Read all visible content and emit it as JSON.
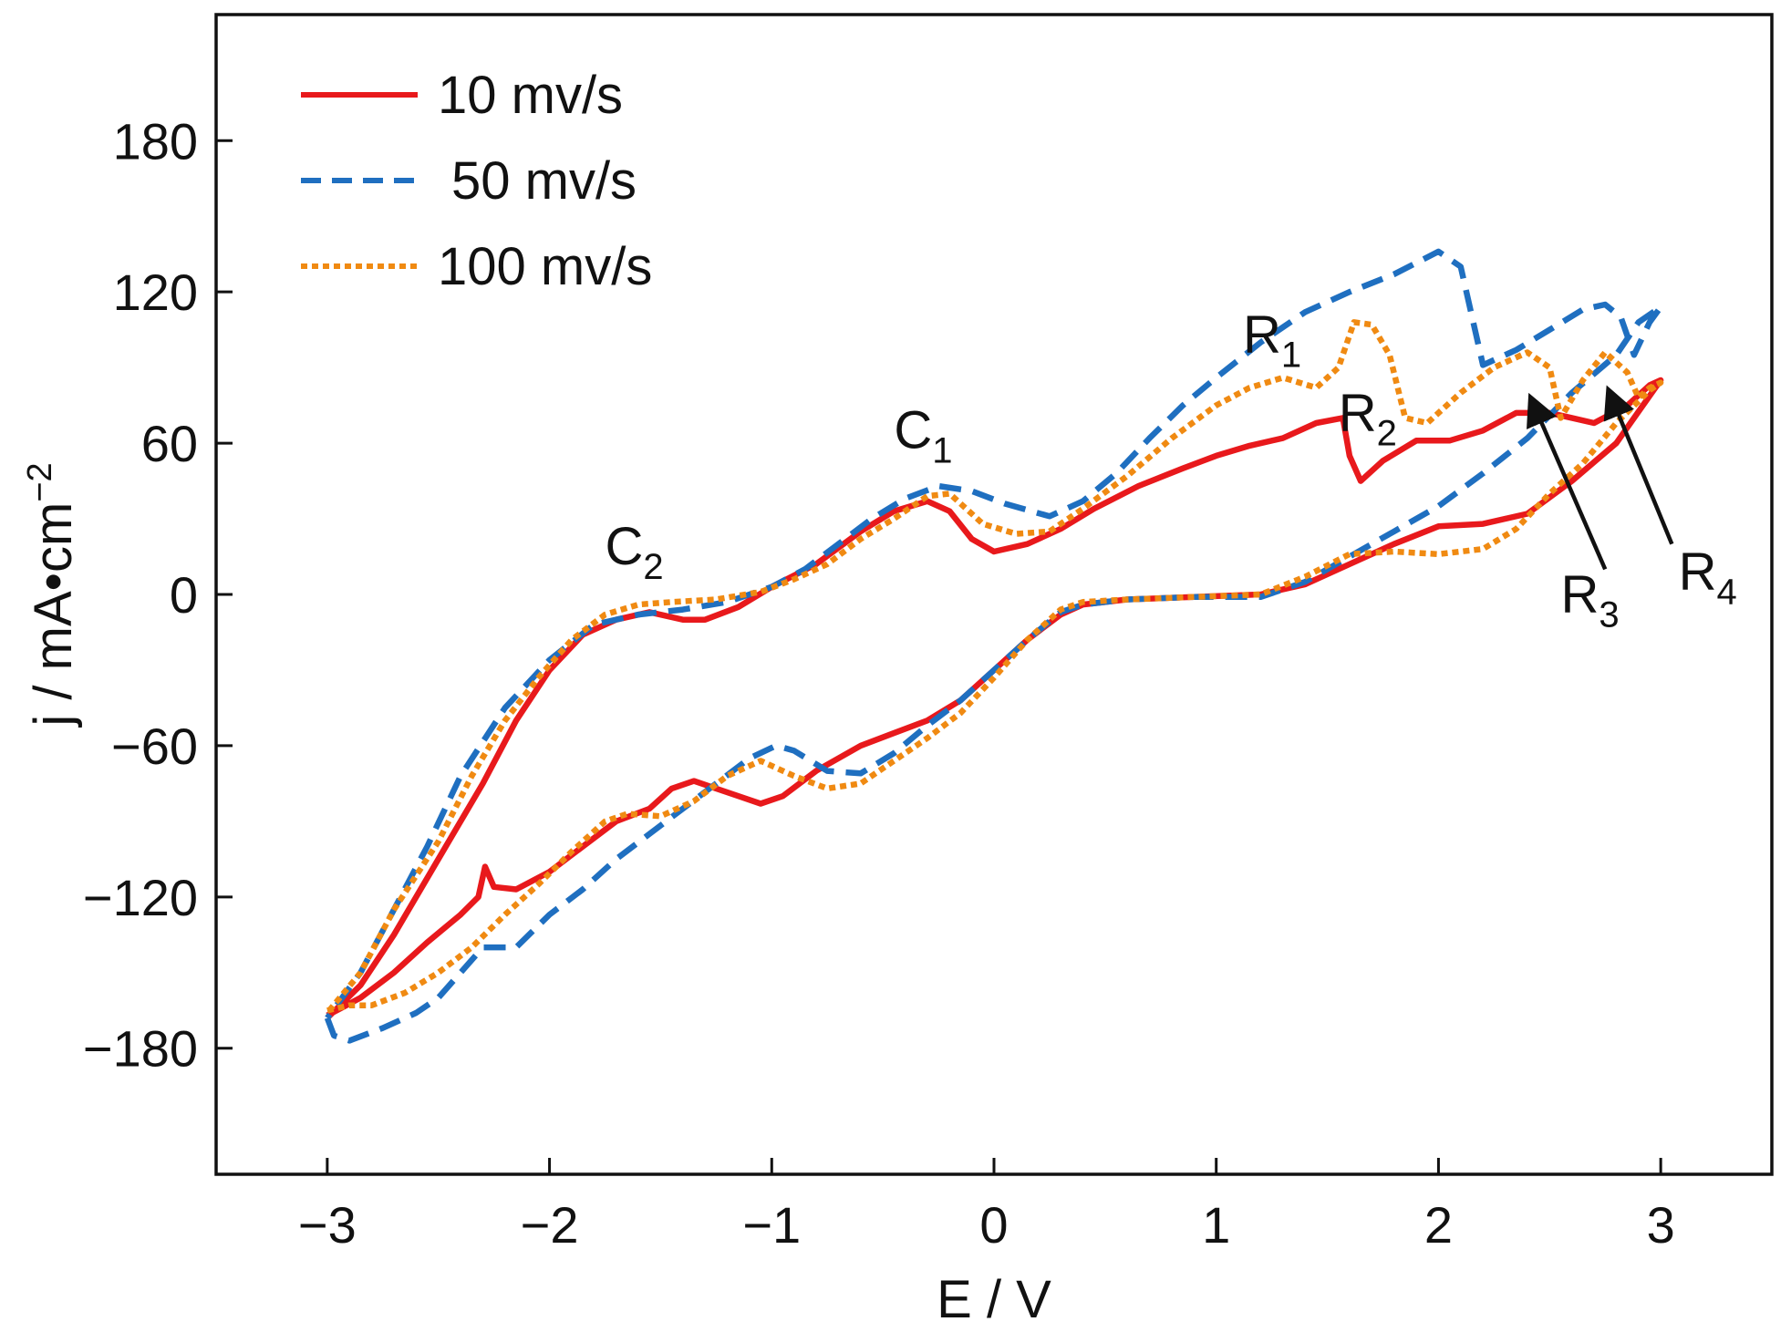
{
  "chart_data": {
    "type": "line",
    "title": "",
    "xlabel": "E / V",
    "ylabel": {
      "prefix": "j / mA•cm",
      "superscript": "−2"
    },
    "xlim": [
      -3.5,
      3.5
    ],
    "ylim": [
      -230,
      230
    ],
    "x_ticks": [
      -3,
      -2,
      -1,
      0,
      1,
      2,
      3
    ],
    "x_tick_labels": [
      "−3",
      "−2",
      "−1",
      "0",
      "1",
      "2",
      "3"
    ],
    "y_ticks": [
      -180,
      -120,
      -60,
      0,
      60,
      120,
      180
    ],
    "y_tick_labels": [
      "−180",
      "−120",
      "−60",
      "0",
      "60",
      "120",
      "180"
    ],
    "grid": false,
    "legend_position": "top-left",
    "series": [
      {
        "name": "10 mv/s",
        "color": "#e8191c",
        "style": "solid",
        "points": [
          [
            -3.0,
            -167
          ],
          [
            -2.85,
            -160
          ],
          [
            -2.7,
            -150
          ],
          [
            -2.55,
            -138
          ],
          [
            -2.4,
            -127
          ],
          [
            -2.32,
            -120
          ],
          [
            -2.29,
            -108
          ],
          [
            -2.25,
            -116
          ],
          [
            -2.15,
            -117
          ],
          [
            -2.0,
            -110
          ],
          [
            -1.85,
            -100
          ],
          [
            -1.7,
            -90
          ],
          [
            -1.55,
            -85
          ],
          [
            -1.45,
            -77
          ],
          [
            -1.35,
            -74
          ],
          [
            -1.25,
            -77
          ],
          [
            -1.15,
            -80
          ],
          [
            -1.05,
            -83
          ],
          [
            -0.95,
            -80
          ],
          [
            -0.8,
            -70
          ],
          [
            -0.6,
            -60
          ],
          [
            -0.45,
            -55
          ],
          [
            -0.3,
            -50
          ],
          [
            -0.15,
            -42
          ],
          [
            0.0,
            -30
          ],
          [
            0.15,
            -18
          ],
          [
            0.3,
            -8
          ],
          [
            0.4,
            -4
          ],
          [
            0.6,
            -2
          ],
          [
            0.9,
            -1
          ],
          [
            1.2,
            0
          ],
          [
            1.4,
            4
          ],
          [
            1.6,
            12
          ],
          [
            1.8,
            20
          ],
          [
            2.0,
            27
          ],
          [
            2.2,
            28
          ],
          [
            2.4,
            32
          ],
          [
            2.6,
            45
          ],
          [
            2.8,
            60
          ],
          [
            3.0,
            85
          ],
          [
            2.95,
            83
          ],
          [
            2.85,
            75
          ],
          [
            2.7,
            68
          ],
          [
            2.6,
            70
          ],
          [
            2.5,
            72
          ],
          [
            2.35,
            72
          ],
          [
            2.2,
            65
          ],
          [
            2.05,
            61
          ],
          [
            1.9,
            61
          ],
          [
            1.75,
            53
          ],
          [
            1.65,
            45
          ],
          [
            1.6,
            55
          ],
          [
            1.57,
            70
          ],
          [
            1.45,
            68
          ],
          [
            1.3,
            62
          ],
          [
            1.15,
            59
          ],
          [
            1.0,
            55
          ],
          [
            0.85,
            50
          ],
          [
            0.65,
            43
          ],
          [
            0.45,
            34
          ],
          [
            0.3,
            26
          ],
          [
            0.15,
            20
          ],
          [
            0.0,
            17
          ],
          [
            -0.1,
            22
          ],
          [
            -0.2,
            33
          ],
          [
            -0.3,
            37
          ],
          [
            -0.45,
            33
          ],
          [
            -0.6,
            25
          ],
          [
            -0.8,
            12
          ],
          [
            -1.0,
            3
          ],
          [
            -1.15,
            -5
          ],
          [
            -1.3,
            -10
          ],
          [
            -1.4,
            -10
          ],
          [
            -1.55,
            -7
          ],
          [
            -1.7,
            -10
          ],
          [
            -1.85,
            -16
          ],
          [
            -2.0,
            -30
          ],
          [
            -2.15,
            -50
          ],
          [
            -2.3,
            -75
          ],
          [
            -2.5,
            -105
          ],
          [
            -2.7,
            -135
          ],
          [
            -2.85,
            -155
          ],
          [
            -3.0,
            -168
          ]
        ]
      },
      {
        "name": "50 mv/s",
        "color": "#1f6fc0",
        "style": "dashed",
        "points": [
          [
            -3.0,
            -168
          ],
          [
            -2.97,
            -175
          ],
          [
            -2.9,
            -177
          ],
          [
            -2.75,
            -172
          ],
          [
            -2.6,
            -166
          ],
          [
            -2.5,
            -160
          ],
          [
            -2.4,
            -150
          ],
          [
            -2.3,
            -140
          ],
          [
            -2.15,
            -140
          ],
          [
            -2.0,
            -127
          ],
          [
            -1.85,
            -117
          ],
          [
            -1.7,
            -105
          ],
          [
            -1.55,
            -95
          ],
          [
            -1.4,
            -85
          ],
          [
            -1.25,
            -75
          ],
          [
            -1.1,
            -65
          ],
          [
            -0.98,
            -60
          ],
          [
            -0.9,
            -62
          ],
          [
            -0.75,
            -70
          ],
          [
            -0.6,
            -71
          ],
          [
            -0.45,
            -63
          ],
          [
            -0.3,
            -52
          ],
          [
            -0.15,
            -42
          ],
          [
            0.0,
            -30
          ],
          [
            0.15,
            -18
          ],
          [
            0.3,
            -7
          ],
          [
            0.4,
            -4
          ],
          [
            0.6,
            -2
          ],
          [
            0.9,
            -1
          ],
          [
            1.2,
            -1
          ],
          [
            1.4,
            5
          ],
          [
            1.6,
            15
          ],
          [
            1.8,
            25
          ],
          [
            2.0,
            35
          ],
          [
            2.2,
            48
          ],
          [
            2.4,
            62
          ],
          [
            2.6,
            80
          ],
          [
            2.8,
            95
          ],
          [
            2.9,
            108
          ],
          [
            3.0,
            114
          ],
          [
            2.95,
            108
          ],
          [
            2.88,
            95
          ],
          [
            2.82,
            110
          ],
          [
            2.75,
            115
          ],
          [
            2.65,
            113
          ],
          [
            2.5,
            105
          ],
          [
            2.35,
            97
          ],
          [
            2.2,
            91
          ],
          [
            2.1,
            130
          ],
          [
            2.0,
            136
          ],
          [
            1.8,
            127
          ],
          [
            1.6,
            120
          ],
          [
            1.4,
            112
          ],
          [
            1.2,
            100
          ],
          [
            1.0,
            86
          ],
          [
            0.85,
            75
          ],
          [
            0.7,
            62
          ],
          [
            0.55,
            48
          ],
          [
            0.4,
            37
          ],
          [
            0.25,
            31
          ],
          [
            0.05,
            36
          ],
          [
            -0.1,
            41
          ],
          [
            -0.25,
            43
          ],
          [
            -0.4,
            38
          ],
          [
            -0.55,
            30
          ],
          [
            -0.7,
            20
          ],
          [
            -0.85,
            10
          ],
          [
            -1.0,
            3
          ],
          [
            -1.2,
            -3
          ],
          [
            -1.4,
            -6
          ],
          [
            -1.6,
            -8
          ],
          [
            -1.8,
            -12
          ],
          [
            -2.0,
            -26
          ],
          [
            -2.2,
            -45
          ],
          [
            -2.4,
            -72
          ],
          [
            -2.55,
            -100
          ],
          [
            -2.7,
            -125
          ],
          [
            -2.85,
            -150
          ],
          [
            -3.0,
            -168
          ]
        ]
      },
      {
        "name": "100 mv/s",
        "color": "#f08a12",
        "style": "dotted",
        "points": [
          [
            -3.0,
            -165
          ],
          [
            -2.9,
            -163
          ],
          [
            -2.8,
            -163
          ],
          [
            -2.65,
            -158
          ],
          [
            -2.5,
            -150
          ],
          [
            -2.35,
            -140
          ],
          [
            -2.2,
            -127
          ],
          [
            -2.05,
            -115
          ],
          [
            -1.9,
            -102
          ],
          [
            -1.75,
            -90
          ],
          [
            -1.65,
            -87
          ],
          [
            -1.5,
            -88
          ],
          [
            -1.35,
            -82
          ],
          [
            -1.2,
            -72
          ],
          [
            -1.05,
            -66
          ],
          [
            -0.9,
            -72
          ],
          [
            -0.75,
            -77
          ],
          [
            -0.6,
            -75
          ],
          [
            -0.45,
            -66
          ],
          [
            -0.3,
            -57
          ],
          [
            -0.15,
            -47
          ],
          [
            0.0,
            -33
          ],
          [
            0.15,
            -18
          ],
          [
            0.3,
            -6
          ],
          [
            0.4,
            -3
          ],
          [
            0.6,
            -2
          ],
          [
            0.9,
            -1
          ],
          [
            1.2,
            0
          ],
          [
            1.4,
            7
          ],
          [
            1.6,
            16
          ],
          [
            1.8,
            17
          ],
          [
            2.0,
            16
          ],
          [
            2.2,
            18
          ],
          [
            2.35,
            26
          ],
          [
            2.5,
            40
          ],
          [
            2.65,
            52
          ],
          [
            2.8,
            68
          ],
          [
            2.95,
            81
          ],
          [
            3.0,
            84
          ],
          [
            2.95,
            82
          ],
          [
            2.9,
            78
          ],
          [
            2.85,
            88
          ],
          [
            2.75,
            96
          ],
          [
            2.65,
            85
          ],
          [
            2.55,
            70
          ],
          [
            2.5,
            90
          ],
          [
            2.4,
            96
          ],
          [
            2.25,
            90
          ],
          [
            2.1,
            80
          ],
          [
            1.95,
            68
          ],
          [
            1.85,
            70
          ],
          [
            1.78,
            95
          ],
          [
            1.7,
            107
          ],
          [
            1.62,
            108
          ],
          [
            1.55,
            90
          ],
          [
            1.45,
            82
          ],
          [
            1.3,
            86
          ],
          [
            1.15,
            82
          ],
          [
            1.0,
            75
          ],
          [
            0.8,
            62
          ],
          [
            0.6,
            47
          ],
          [
            0.4,
            34
          ],
          [
            0.25,
            25
          ],
          [
            0.1,
            24
          ],
          [
            -0.05,
            28
          ],
          [
            -0.2,
            40
          ],
          [
            -0.3,
            39
          ],
          [
            -0.45,
            30
          ],
          [
            -0.6,
            22
          ],
          [
            -0.75,
            12
          ],
          [
            -0.9,
            6
          ],
          [
            -1.05,
            1
          ],
          [
            -1.25,
            -2
          ],
          [
            -1.45,
            -3
          ],
          [
            -1.6,
            -4
          ],
          [
            -1.75,
            -8
          ],
          [
            -1.9,
            -18
          ],
          [
            -2.05,
            -33
          ],
          [
            -2.2,
            -50
          ],
          [
            -2.35,
            -72
          ],
          [
            -2.5,
            -98
          ],
          [
            -2.7,
            -125
          ],
          [
            -2.85,
            -150
          ],
          [
            -3.0,
            -166
          ]
        ]
      }
    ],
    "annotations": [
      {
        "id": "c2",
        "main": "C",
        "sub": "2",
        "x": -1.75,
        "y": 12
      },
      {
        "id": "c1",
        "main": "C",
        "sub": "1",
        "x": -0.45,
        "y": 58
      },
      {
        "id": "r1",
        "main": "R",
        "sub": "1",
        "x": 1.12,
        "y": 96
      },
      {
        "id": "r2",
        "main": "R",
        "sub": "2",
        "x": 1.55,
        "y": 65
      },
      {
        "id": "r3",
        "main": "R",
        "sub": "3",
        "x": 2.55,
        "y": -7
      },
      {
        "id": "r4",
        "main": "R",
        "sub": "4",
        "x": 3.08,
        "y": 2
      }
    ],
    "arrows": [
      {
        "id": "r3-arrow",
        "from": [
          2.75,
          10
        ],
        "to": [
          2.42,
          77
        ]
      },
      {
        "id": "r4-arrow",
        "from": [
          3.05,
          20
        ],
        "to": [
          2.77,
          80
        ]
      }
    ]
  }
}
